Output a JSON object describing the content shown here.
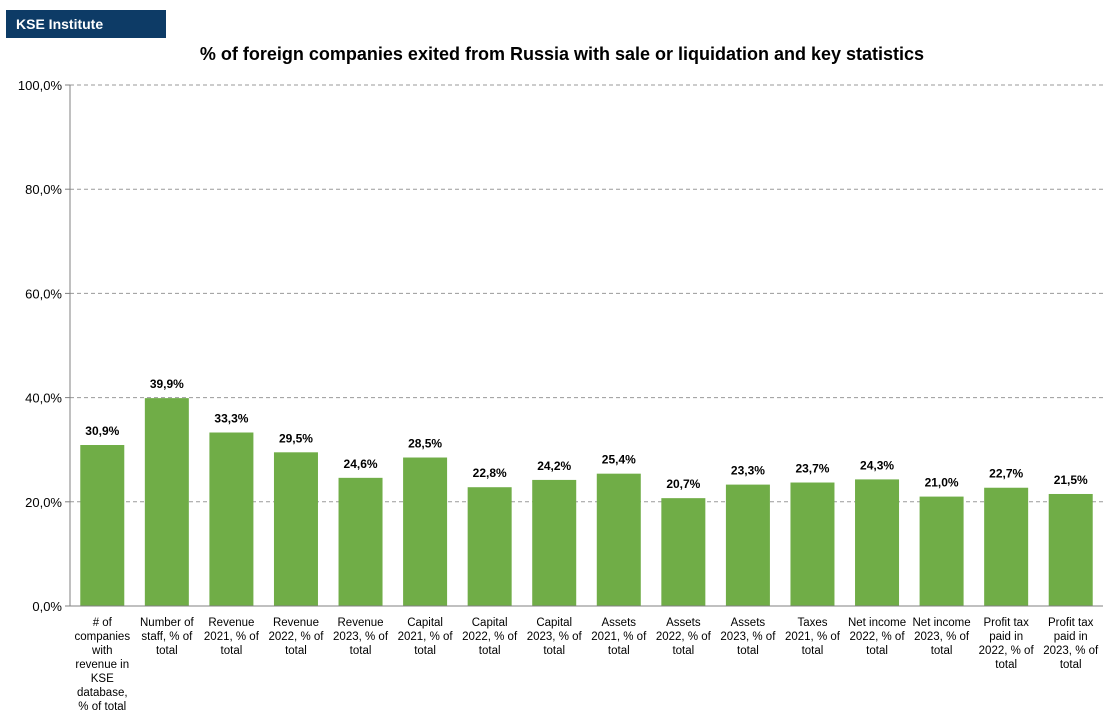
{
  "brand": {
    "label": "KSE Institute",
    "color": "#0d3b66"
  },
  "chart_data": {
    "type": "bar",
    "title": "% of foreign companies exited from Russia with sale or liquidation and key statistics",
    "xlabel": "",
    "ylabel": "",
    "ylim": [
      0,
      100
    ],
    "yticks": [
      "0,0%",
      "20,0%",
      "40,0%",
      "60,0%",
      "80,0%",
      "100,0%"
    ],
    "grid": true,
    "bar_color": "#70ad47",
    "categories": [
      [
        "# of",
        "companies",
        "with",
        "revenue in",
        "KSE",
        "database,",
        "% of total"
      ],
      [
        "Number of",
        "staff, % of",
        "total"
      ],
      [
        "Revenue",
        "2021, % of",
        "total"
      ],
      [
        "Revenue",
        "2022, % of",
        "total"
      ],
      [
        "Revenue",
        "2023, % of",
        "total"
      ],
      [
        "Capital",
        "2021, % of",
        "total"
      ],
      [
        "Capital",
        "2022, % of",
        "total"
      ],
      [
        "Capital",
        "2023, % of",
        "total"
      ],
      [
        "Assets",
        "2021, % of",
        "total"
      ],
      [
        "Assets",
        "2022, % of",
        "total"
      ],
      [
        "Assets",
        "2023, % of",
        "total"
      ],
      [
        "Taxes",
        "2021, % of",
        "total"
      ],
      [
        "Net income",
        "2022, % of",
        "total"
      ],
      [
        "Net income",
        "2023, % of",
        "total"
      ],
      [
        "Profit tax",
        "paid in",
        "2022, % of",
        "total"
      ],
      [
        "Profit tax",
        "paid in",
        "2023, % of",
        "total"
      ]
    ],
    "values": [
      30.9,
      39.9,
      33.3,
      29.5,
      24.6,
      28.5,
      22.8,
      24.2,
      25.4,
      20.7,
      23.3,
      23.7,
      24.3,
      21.0,
      22.7,
      21.5
    ],
    "labels": [
      "30,9%",
      "39,9%",
      "33,3%",
      "29,5%",
      "24,6%",
      "28,5%",
      "22,8%",
      "24,2%",
      "25,4%",
      "20,7%",
      "23,3%",
      "23,7%",
      "24,3%",
      "21,0%",
      "22,7%",
      "21,5%"
    ]
  }
}
